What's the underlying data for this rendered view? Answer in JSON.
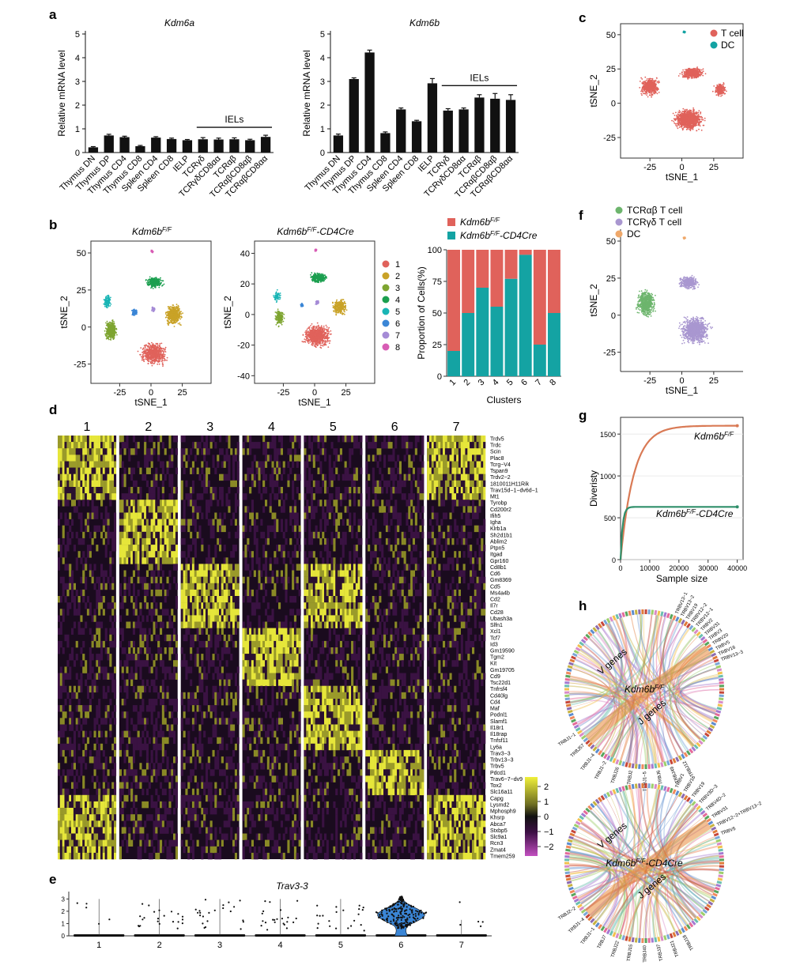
{
  "figure": {
    "panel_labels": [
      "a",
      "b",
      "c",
      "d",
      "e",
      "f",
      "g",
      "h"
    ]
  },
  "colors": {
    "tcell": "#e0625b",
    "dc": "#14a3a3",
    "tcrab": "#6db56d",
    "tcrgd": "#a997d0",
    "dc_f": "#efa86a",
    "wt_bar": "#e0625b",
    "ko_bar": "#14a3a3",
    "wt_curve": "#d97a55",
    "ko_curve": "#2f8f6a",
    "clusters": [
      "#e0625b",
      "#c9a227",
      "#7ea531",
      "#1b9f4f",
      "#19b5b5",
      "#3b86d6",
      "#a58bd6",
      "#d85db5"
    ]
  },
  "chart_data": [
    {
      "id": "a1",
      "type": "bar",
      "title": "Kdm6a",
      "ylabel": "Relative mRNA level",
      "ylim": [
        0,
        5
      ],
      "yticks": [
        0,
        1,
        2,
        3,
        4,
        5
      ],
      "categories": [
        "Thymus DN",
        "Thymus DP",
        "Thymus CD4",
        "Thymus CD8",
        "Spleen CD4",
        "Spleen CD8",
        "IELP",
        "TCRγδ",
        "TCRγδCD8αα",
        "TCRαβ",
        "TCRαβCD8αβ",
        "TCRαβCD8αα"
      ],
      "values": [
        0.22,
        0.72,
        0.65,
        0.27,
        0.63,
        0.57,
        0.52,
        0.56,
        0.55,
        0.56,
        0.52,
        0.66
      ],
      "errors": [
        0.03,
        0.05,
        0.04,
        0.03,
        0.04,
        0.04,
        0.03,
        0.07,
        0.06,
        0.06,
        0.04,
        0.07
      ],
      "bracket": {
        "label": "IELs",
        "from": 7,
        "to": 11
      }
    },
    {
      "id": "a2",
      "type": "bar",
      "title": "Kdm6b",
      "ylabel": "Relative mRNA level",
      "ylim": [
        0,
        5
      ],
      "yticks": [
        0,
        1,
        2,
        3,
        4,
        5
      ],
      "categories": [
        "Thymus DN",
        "Thymus DP",
        "Thymus CD4",
        "Thymus CD8",
        "Spleen CD4",
        "Spleen CD8",
        "IELP",
        "TCRγδ",
        "TCRγδCD8αα",
        "TCRαβ",
        "TCRαβCD8αβ",
        "TCRαβCD8αα"
      ],
      "values": [
        0.72,
        3.1,
        4.22,
        0.82,
        1.82,
        1.32,
        2.92,
        1.77,
        1.82,
        2.32,
        2.27,
        2.22
      ],
      "errors": [
        0.06,
        0.05,
        0.1,
        0.05,
        0.06,
        0.04,
        0.2,
        0.08,
        0.06,
        0.12,
        0.22,
        0.22
      ],
      "bracket": {
        "label": "IELs",
        "from": 7,
        "to": 11
      }
    },
    {
      "id": "b_bar",
      "type": "bar",
      "stacked": true,
      "ylabel": "Proportion of Cells(%)",
      "xlabel": "Clusters",
      "ylim": [
        0,
        100
      ],
      "yticks": [
        0,
        25,
        50,
        75,
        100
      ],
      "categories": [
        "1",
        "2",
        "3",
        "4",
        "5",
        "6",
        "7",
        "8"
      ],
      "legend": [
        "Kdm6b",
        "Kdm6b",
        "-CD4Cre"
      ],
      "legend_sup": [
        "F/F",
        "F/F"
      ],
      "series": [
        {
          "values": [
            80,
            50,
            30,
            45,
            23,
            4,
            75,
            50
          ]
        },
        {
          "values": [
            20,
            50,
            70,
            55,
            77,
            96,
            25,
            50
          ]
        }
      ]
    },
    {
      "id": "g",
      "type": "line",
      "xlabel": "Sample size",
      "ylabel": "Diveristy",
      "xlim": [
        0,
        42000
      ],
      "ylim": [
        0,
        1700
      ],
      "xticks": [
        0,
        10000,
        20000,
        30000,
        40000
      ],
      "yticks": [
        0,
        500,
        1000,
        1500
      ],
      "series": [
        {
          "label": "Kdm6b",
          "sup": "F/F",
          "max": 1600,
          "k": 4500,
          "xend": 40000
        },
        {
          "label": "Kdm6b",
          "sup": "F/F",
          "suffix": "-CD4Cre",
          "max": 630,
          "k": 700,
          "xend": 40000
        }
      ]
    }
  ],
  "tsne": {
    "axis_x": "tSNE_1",
    "axis_y": "tSNE_2",
    "wt_title": "Kdm6b",
    "wt_title_sup": "F/F",
    "ko_title": "Kdm6b",
    "ko_title_sup": "F/F",
    "ko_title_suffix": "-CD4Cre",
    "b1_xticks": [
      -25,
      0,
      25
    ],
    "b1_yticks": [
      50,
      25,
      0,
      -25
    ],
    "b2_xticks": [
      -25,
      0,
      25
    ],
    "b2_yticks": [
      40,
      20,
      0,
      -20,
      -40
    ],
    "c_xticks": [
      -25,
      0,
      25
    ],
    "c_yticks": [
      50,
      25,
      0,
      -25
    ],
    "f_xticks": [
      -25,
      0,
      25
    ],
    "f_yticks": [
      50,
      25,
      0,
      -25
    ],
    "cluster_legend": [
      "1",
      "2",
      "3",
      "4",
      "5",
      "6",
      "7",
      "8"
    ],
    "c_legend": [
      "T cell",
      "DC"
    ],
    "f_legend": [
      "TCRαβ T cell",
      "TCRγδ T cell",
      "DC"
    ]
  },
  "heatmap": {
    "clusters": [
      "1",
      "2",
      "3",
      "4",
      "5",
      "6",
      "7"
    ],
    "genes": [
      "Trdv5",
      "Trdc",
      "Scin",
      "Plac8",
      "Tcrg−V4",
      "Tspan9",
      "Trdv2−2",
      "1810011H11Rik",
      "Trav15d−1−dv6d−1",
      "Mt1",
      "Tyrobp",
      "Cd200r2",
      "Ifih5",
      "Igha",
      "Klrb1a",
      "Sh2d1b1",
      "Ablim2",
      "Ptpn5",
      "Itgad",
      "Gpr160",
      "Cd8b1",
      "Cd6",
      "Gm8369",
      "Cd5",
      "Ms4a4b",
      "Cd2",
      "Il7r",
      "Cd28",
      "Ubash3a",
      "Slfn1",
      "Xcl1",
      "Tcf7",
      "Id3",
      "Gm19590",
      "Tgm2",
      "Kit",
      "Gm19705",
      "Cd9",
      "Tsc22d1",
      "Tnfrsf4",
      "Cd40lg",
      "Cd4",
      "Maf",
      "Podnl1",
      "Slamf1",
      "Il18r1",
      "Il18rap",
      "Tnfsf11",
      "Ly6a",
      "Trav3−3",
      "Trbv13−3",
      "Trbv5",
      "Pdcd1",
      "Trav6−7−dv9",
      "Tox2",
      "Slc16a11",
      "Capg",
      "Lysmd2",
      "Mphosph9",
      "Khsrp",
      "Abca7",
      "Stxbp5",
      "Slc9a1",
      "Rcn3",
      "Zmat4",
      "Tmem259"
    ],
    "scale_ticks": [
      "2",
      "1",
      "0",
      "−1",
      "−2"
    ]
  },
  "violin": {
    "title": "Trav3-3",
    "categories": [
      "1",
      "2",
      "3",
      "4",
      "5",
      "6",
      "7"
    ],
    "yticks": [
      "0",
      "1",
      "2",
      "3"
    ]
  },
  "chord": {
    "wt_center": "Kdm6b",
    "wt_center_sup": "F/F",
    "ko_center": "Kdm6b",
    "ko_center_sup": "F/F",
    "ko_center_suffix": "-CD4Cre",
    "v_label": "V genes",
    "j_label": "J genes",
    "wt_top_labels": [
      "TRBV13−1",
      "TRBV13−2",
      "TRBV19",
      "TRBV12−2",
      "TRBV12−1",
      "TRBV2",
      "TRBV31",
      "TRBV3",
      "TRBV20",
      "TRBV5",
      "TRBV16",
      "TRBV13−3"
    ],
    "wt_bottom_labels": [
      "TRBJ1−1",
      "TRBJ57",
      "TRBJ1−4",
      "TRBJ1−2",
      "TRBJ26",
      "TRBJ2",
      "TRBJ1−5",
      "TRBJ6",
      "TRBJ49",
      "TRBJ12"
    ],
    "ko_top_labels": [
      "TRBV1",
      "TRBV16",
      "TRBV19",
      "TRBV3D−3",
      "TRBV4D−2",
      "TRBV31",
      "TRBV12−2+TRBV13−2",
      "TRBV5"
    ],
    "ko_bottom_labels": [
      "TRBJ2−2",
      "TRBJ1−4",
      "TRBJ1−1",
      "TRBJ7",
      "TRBJ22",
      "TRBJ15",
      "TRBJ40",
      "TRBJ37",
      "TRBJ21",
      "TRBJ18"
    ]
  }
}
